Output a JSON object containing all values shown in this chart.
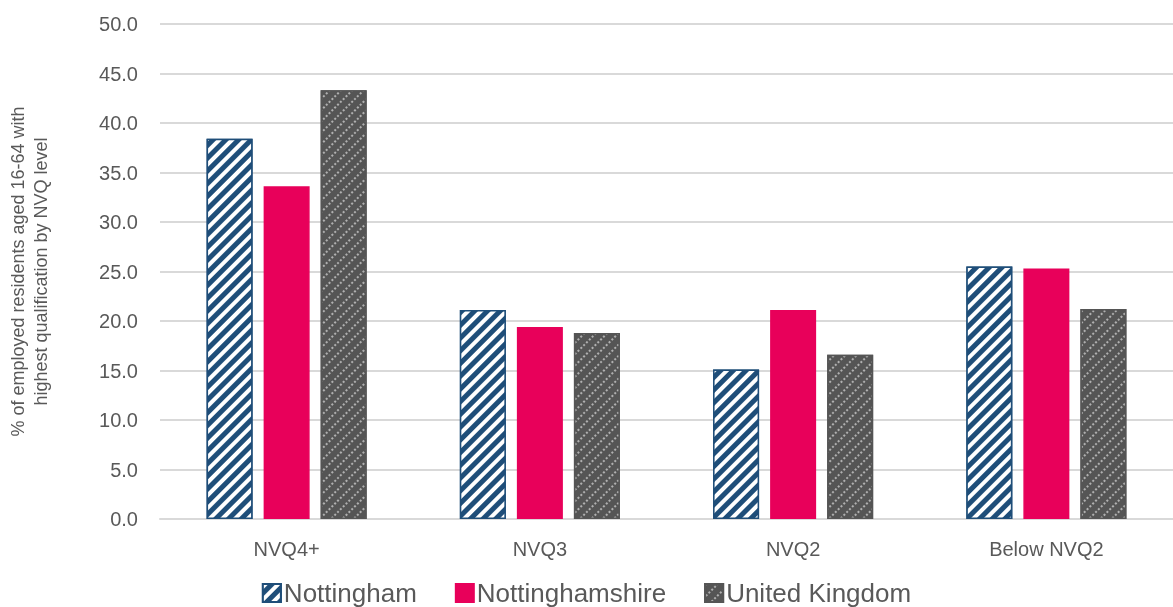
{
  "chart_data": {
    "type": "bar",
    "ylabel": "% of employed residents aged 16-64 with highest qualification by NVQ level",
    "categories": [
      "NVQ4+",
      "NVQ3",
      "NVQ2",
      "Below NVQ2"
    ],
    "series": [
      {
        "name": "Nottingham",
        "color": "#1f4e79",
        "values": [
          38.4,
          21.1,
          15.1,
          25.5
        ]
      },
      {
        "name": "Nottinghamshire",
        "color": "#e8005a",
        "values": [
          33.6,
          19.4,
          21.1,
          25.3
        ]
      },
      {
        "name": "United Kingdom",
        "color": "#555555",
        "values": [
          43.3,
          18.8,
          16.6,
          21.2
        ]
      }
    ],
    "ylim": [
      0,
      50
    ],
    "yticks": [
      {
        "value": 0,
        "label": "0.0"
      },
      {
        "value": 5,
        "label": "5.0"
      },
      {
        "value": 10,
        "label": "10.0"
      },
      {
        "value": 15,
        "label": "15.0"
      },
      {
        "value": 20,
        "label": "20.0"
      },
      {
        "value": 25,
        "label": "25.0"
      },
      {
        "value": 30,
        "label": "30.0"
      },
      {
        "value": 35,
        "label": "35.0"
      },
      {
        "value": 40,
        "label": "40.0"
      },
      {
        "value": 45,
        "label": "45.0"
      },
      {
        "value": 50,
        "label": "50.0"
      }
    ],
    "grid": "y",
    "legend": "bottom"
  }
}
